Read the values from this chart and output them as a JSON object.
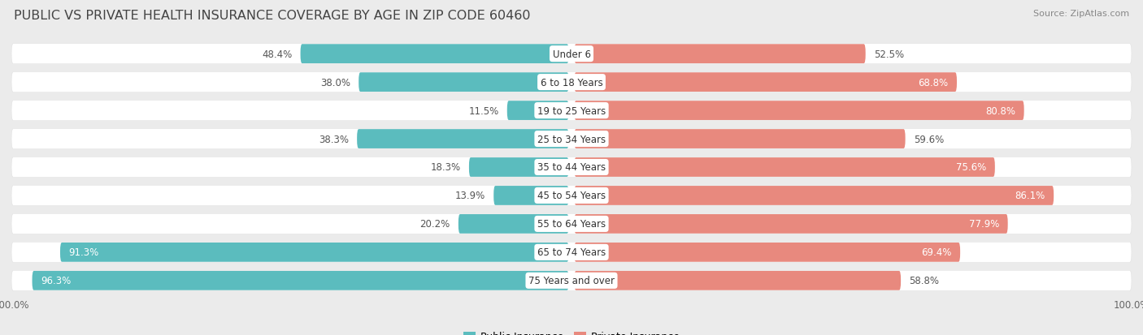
{
  "title": "PUBLIC VS PRIVATE HEALTH INSURANCE COVERAGE BY AGE IN ZIP CODE 60460",
  "source": "Source: ZipAtlas.com",
  "categories": [
    "Under 6",
    "6 to 18 Years",
    "19 to 25 Years",
    "25 to 34 Years",
    "35 to 44 Years",
    "45 to 54 Years",
    "55 to 64 Years",
    "65 to 74 Years",
    "75 Years and over"
  ],
  "public_values": [
    48.4,
    38.0,
    11.5,
    38.3,
    18.3,
    13.9,
    20.2,
    91.3,
    96.3
  ],
  "private_values": [
    52.5,
    68.8,
    80.8,
    59.6,
    75.6,
    86.1,
    77.9,
    69.4,
    58.8
  ],
  "public_color": "#5bbcbe",
  "private_color": "#e8897e",
  "bg_color": "#ebebeb",
  "bar_bg_color": "#ffffff",
  "bar_height": 0.72,
  "max_value": 100.0,
  "title_fontsize": 11.5,
  "label_fontsize": 8.5,
  "cat_fontsize": 8.5,
  "tick_fontsize": 8.5,
  "source_fontsize": 8,
  "legend_fontsize": 9
}
